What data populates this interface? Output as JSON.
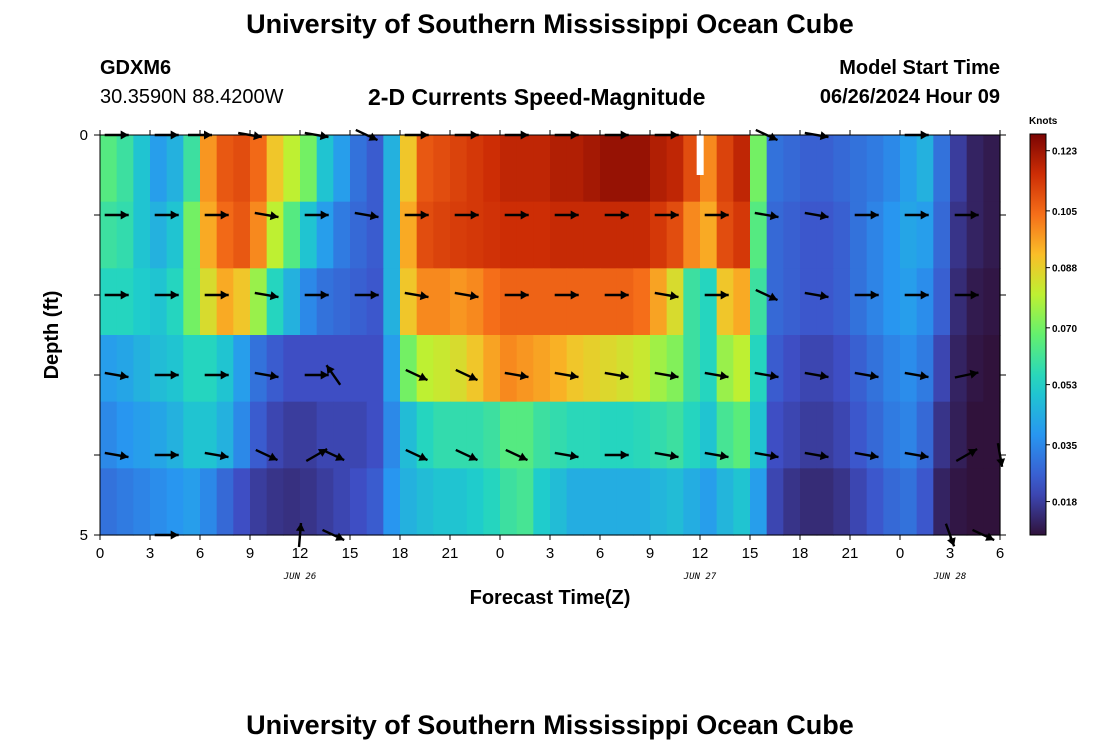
{
  "header": {
    "title": "University of Southern Mississippi Ocean Cube",
    "station_id": "GDXM6",
    "coords": "30.3590N  88.4200W",
    "plot_title": "2-D Currents Speed-Magnitude",
    "model_start_label": "Model Start Time",
    "model_start_value": "06/26/2024 Hour 09"
  },
  "footer": {
    "title": "University of Southern Mississippi Ocean Cube"
  },
  "chart_data": {
    "type": "heatmap",
    "title": "2-D Currents Speed-Magnitude",
    "xlabel": "Forecast Time(Z)",
    "ylabel": "Depth (ft)",
    "x_ticks": [
      "0",
      "3",
      "6",
      "9",
      "12",
      "15",
      "18",
      "21",
      "0",
      "3",
      "6",
      "9",
      "12",
      "15",
      "18",
      "21",
      "0",
      "3",
      "6"
    ],
    "x_range_hours": [
      0,
      54
    ],
    "y_ticks": [
      "0",
      "5"
    ],
    "y_range_ft": [
      0,
      5
    ],
    "date_labels": [
      {
        "text": "JUN 26",
        "hour": 12
      },
      {
        "text": "JUN 27",
        "hour": 36
      },
      {
        "text": "JUN 28",
        "hour": 51
      }
    ],
    "colorbar": {
      "unit": "Knots",
      "ticks": [
        "0.123",
        "0.105",
        "0.088",
        "0.070",
        "0.053",
        "0.035",
        "0.018"
      ],
      "range": [
        0.008,
        0.128
      ]
    },
    "columns_hours": [
      0,
      1,
      2,
      3,
      4,
      5,
      6,
      7,
      8,
      9,
      10,
      11,
      12,
      13,
      14,
      15,
      16,
      17,
      18,
      19,
      20,
      21,
      22,
      23,
      24,
      25,
      26,
      27,
      28,
      29,
      30,
      31,
      32,
      33,
      34,
      35,
      36,
      37,
      38,
      39,
      40,
      41,
      42,
      43,
      44,
      45,
      46,
      47,
      48,
      49,
      50,
      51,
      52,
      53
    ],
    "depth_rows_ft": [
      0,
      1,
      2,
      3,
      4,
      5
    ],
    "speed_knots": [
      [
        0.065,
        0.06,
        0.05,
        0.04,
        0.045,
        0.06,
        0.098,
        0.108,
        0.11,
        0.105,
        0.09,
        0.08,
        0.07,
        0.05,
        0.04,
        0.03,
        0.025,
        0.045,
        0.09,
        0.108,
        0.11,
        0.112,
        0.114,
        0.116,
        0.118,
        0.118,
        0.118,
        0.12,
        0.12,
        0.122,
        0.124,
        0.124,
        0.124,
        0.12,
        0.118,
        0.11,
        0.1,
        0.112,
        0.118,
        0.07,
        0.03,
        0.028,
        0.026,
        0.026,
        0.028,
        0.03,
        0.032,
        0.035,
        0.04,
        0.045,
        0.03,
        0.018,
        0.012,
        0.01
      ],
      [
        0.06,
        0.058,
        0.05,
        0.045,
        0.05,
        0.07,
        0.095,
        0.105,
        0.108,
        0.1,
        0.08,
        0.065,
        0.05,
        0.04,
        0.032,
        0.028,
        0.025,
        0.045,
        0.095,
        0.11,
        0.112,
        0.113,
        0.114,
        0.115,
        0.116,
        0.116,
        0.116,
        0.117,
        0.117,
        0.117,
        0.117,
        0.117,
        0.117,
        0.114,
        0.11,
        0.1,
        0.095,
        0.11,
        0.114,
        0.065,
        0.028,
        0.026,
        0.024,
        0.024,
        0.026,
        0.03,
        0.034,
        0.038,
        0.042,
        0.04,
        0.028,
        0.016,
        0.012,
        0.01
      ],
      [
        0.055,
        0.055,
        0.052,
        0.05,
        0.055,
        0.07,
        0.085,
        0.095,
        0.09,
        0.075,
        0.055,
        0.045,
        0.035,
        0.03,
        0.028,
        0.026,
        0.024,
        0.045,
        0.09,
        0.1,
        0.1,
        0.098,
        0.1,
        0.104,
        0.106,
        0.106,
        0.106,
        0.106,
        0.106,
        0.106,
        0.106,
        0.106,
        0.104,
        0.096,
        0.085,
        0.06,
        0.055,
        0.09,
        0.095,
        0.06,
        0.028,
        0.026,
        0.024,
        0.024,
        0.026,
        0.03,
        0.034,
        0.038,
        0.04,
        0.036,
        0.026,
        0.014,
        0.01,
        0.009
      ],
      [
        0.04,
        0.042,
        0.045,
        0.048,
        0.05,
        0.055,
        0.055,
        0.05,
        0.04,
        0.03,
        0.025,
        0.022,
        0.022,
        0.022,
        0.022,
        0.022,
        0.022,
        0.04,
        0.07,
        0.08,
        0.082,
        0.085,
        0.09,
        0.096,
        0.1,
        0.098,
        0.096,
        0.094,
        0.09,
        0.088,
        0.086,
        0.084,
        0.082,
        0.076,
        0.072,
        0.06,
        0.055,
        0.075,
        0.08,
        0.055,
        0.025,
        0.022,
        0.02,
        0.02,
        0.022,
        0.026,
        0.03,
        0.034,
        0.036,
        0.032,
        0.02,
        0.012,
        0.009,
        0.008
      ],
      [
        0.035,
        0.038,
        0.04,
        0.042,
        0.045,
        0.05,
        0.05,
        0.045,
        0.035,
        0.025,
        0.02,
        0.018,
        0.018,
        0.02,
        0.02,
        0.02,
        0.022,
        0.035,
        0.048,
        0.055,
        0.058,
        0.058,
        0.058,
        0.06,
        0.065,
        0.065,
        0.06,
        0.058,
        0.056,
        0.056,
        0.055,
        0.055,
        0.056,
        0.058,
        0.06,
        0.055,
        0.05,
        0.062,
        0.066,
        0.05,
        0.022,
        0.02,
        0.018,
        0.018,
        0.02,
        0.024,
        0.028,
        0.032,
        0.034,
        0.028,
        0.016,
        0.011,
        0.008,
        0.008
      ],
      [
        0.03,
        0.032,
        0.034,
        0.036,
        0.038,
        0.04,
        0.035,
        0.028,
        0.022,
        0.018,
        0.016,
        0.015,
        0.016,
        0.018,
        0.02,
        0.022,
        0.025,
        0.038,
        0.045,
        0.048,
        0.05,
        0.05,
        0.052,
        0.055,
        0.06,
        0.062,
        0.052,
        0.048,
        0.044,
        0.044,
        0.044,
        0.044,
        0.044,
        0.046,
        0.048,
        0.044,
        0.04,
        0.046,
        0.05,
        0.04,
        0.02,
        0.016,
        0.014,
        0.014,
        0.016,
        0.02,
        0.024,
        0.028,
        0.03,
        0.024,
        0.012,
        0.009,
        0.008,
        0.008
      ]
    ],
    "vectors": [
      {
        "row": 0,
        "h": 1,
        "dir": "E"
      },
      {
        "row": 0,
        "h": 4,
        "dir": "E"
      },
      {
        "row": 0,
        "h": 6,
        "dir": "E"
      },
      {
        "row": 0,
        "h": 9,
        "dir": "ESE"
      },
      {
        "row": 0,
        "h": 13,
        "dir": "ESE"
      },
      {
        "row": 0,
        "h": 16,
        "dir": "SE"
      },
      {
        "row": 0,
        "h": 19,
        "dir": "E"
      },
      {
        "row": 0,
        "h": 22,
        "dir": "E"
      },
      {
        "row": 0,
        "h": 25,
        "dir": "E"
      },
      {
        "row": 0,
        "h": 28,
        "dir": "E"
      },
      {
        "row": 0,
        "h": 31,
        "dir": "E"
      },
      {
        "row": 0,
        "h": 34,
        "dir": "E"
      },
      {
        "row": 0,
        "h": 40,
        "dir": "SE"
      },
      {
        "row": 0,
        "h": 43,
        "dir": "ESE"
      },
      {
        "row": 0,
        "h": 49,
        "dir": "E"
      },
      {
        "row": 1,
        "h": 1,
        "dir": "E"
      },
      {
        "row": 1,
        "h": 4,
        "dir": "E"
      },
      {
        "row": 1,
        "h": 7,
        "dir": "E"
      },
      {
        "row": 1,
        "h": 10,
        "dir": "ESE"
      },
      {
        "row": 1,
        "h": 13,
        "dir": "E"
      },
      {
        "row": 1,
        "h": 16,
        "dir": "ESE"
      },
      {
        "row": 1,
        "h": 19,
        "dir": "E"
      },
      {
        "row": 1,
        "h": 22,
        "dir": "E"
      },
      {
        "row": 1,
        "h": 25,
        "dir": "E"
      },
      {
        "row": 1,
        "h": 28,
        "dir": "E"
      },
      {
        "row": 1,
        "h": 31,
        "dir": "E"
      },
      {
        "row": 1,
        "h": 34,
        "dir": "E"
      },
      {
        "row": 1,
        "h": 37,
        "dir": "E"
      },
      {
        "row": 1,
        "h": 40,
        "dir": "ESE"
      },
      {
        "row": 1,
        "h": 43,
        "dir": "ESE"
      },
      {
        "row": 1,
        "h": 46,
        "dir": "E"
      },
      {
        "row": 1,
        "h": 49,
        "dir": "E"
      },
      {
        "row": 1,
        "h": 52,
        "dir": "E"
      },
      {
        "row": 2,
        "h": 1,
        "dir": "E"
      },
      {
        "row": 2,
        "h": 4,
        "dir": "E"
      },
      {
        "row": 2,
        "h": 7,
        "dir": "E"
      },
      {
        "row": 2,
        "h": 10,
        "dir": "ESE"
      },
      {
        "row": 2,
        "h": 13,
        "dir": "E"
      },
      {
        "row": 2,
        "h": 16,
        "dir": "E"
      },
      {
        "row": 2,
        "h": 19,
        "dir": "ESE"
      },
      {
        "row": 2,
        "h": 22,
        "dir": "ESE"
      },
      {
        "row": 2,
        "h": 25,
        "dir": "E"
      },
      {
        "row": 2,
        "h": 28,
        "dir": "E"
      },
      {
        "row": 2,
        "h": 31,
        "dir": "E"
      },
      {
        "row": 2,
        "h": 34,
        "dir": "ESE"
      },
      {
        "row": 2,
        "h": 37,
        "dir": "E"
      },
      {
        "row": 2,
        "h": 40,
        "dir": "SE"
      },
      {
        "row": 2,
        "h": 43,
        "dir": "ESE"
      },
      {
        "row": 2,
        "h": 46,
        "dir": "E"
      },
      {
        "row": 2,
        "h": 49,
        "dir": "E"
      },
      {
        "row": 2,
        "h": 52,
        "dir": "E"
      },
      {
        "row": 3,
        "h": 1,
        "dir": "ESE"
      },
      {
        "row": 3,
        "h": 4,
        "dir": "E"
      },
      {
        "row": 3,
        "h": 7,
        "dir": "E"
      },
      {
        "row": 3,
        "h": 10,
        "dir": "ESE"
      },
      {
        "row": 3,
        "h": 13,
        "dir": "E"
      },
      {
        "row": 3,
        "h": 14,
        "dir": "NW"
      },
      {
        "row": 3,
        "h": 19,
        "dir": "SE"
      },
      {
        "row": 3,
        "h": 22,
        "dir": "SE"
      },
      {
        "row": 3,
        "h": 25,
        "dir": "ESE"
      },
      {
        "row": 3,
        "h": 28,
        "dir": "ESE"
      },
      {
        "row": 3,
        "h": 31,
        "dir": "ESE"
      },
      {
        "row": 3,
        "h": 34,
        "dir": "ESE"
      },
      {
        "row": 3,
        "h": 37,
        "dir": "ESE"
      },
      {
        "row": 3,
        "h": 40,
        "dir": "ESE"
      },
      {
        "row": 3,
        "h": 43,
        "dir": "ESE"
      },
      {
        "row": 3,
        "h": 46,
        "dir": "ESE"
      },
      {
        "row": 3,
        "h": 49,
        "dir": "ESE"
      },
      {
        "row": 3,
        "h": 52,
        "dir": "ENE"
      },
      {
        "row": 4,
        "h": 1,
        "dir": "ESE"
      },
      {
        "row": 4,
        "h": 4,
        "dir": "E"
      },
      {
        "row": 4,
        "h": 7,
        "dir": "ESE"
      },
      {
        "row": 4,
        "h": 10,
        "dir": "SE"
      },
      {
        "row": 4,
        "h": 13,
        "dir": "NE"
      },
      {
        "row": 4,
        "h": 14,
        "dir": "SE"
      },
      {
        "row": 4,
        "h": 19,
        "dir": "SE"
      },
      {
        "row": 4,
        "h": 22,
        "dir": "SE"
      },
      {
        "row": 4,
        "h": 25,
        "dir": "SE"
      },
      {
        "row": 4,
        "h": 28,
        "dir": "ESE"
      },
      {
        "row": 4,
        "h": 31,
        "dir": "E"
      },
      {
        "row": 4,
        "h": 34,
        "dir": "ESE"
      },
      {
        "row": 4,
        "h": 37,
        "dir": "ESE"
      },
      {
        "row": 4,
        "h": 40,
        "dir": "ESE"
      },
      {
        "row": 4,
        "h": 43,
        "dir": "ESE"
      },
      {
        "row": 4,
        "h": 46,
        "dir": "ESE"
      },
      {
        "row": 4,
        "h": 49,
        "dir": "ESE"
      },
      {
        "row": 4,
        "h": 52,
        "dir": "NE"
      },
      {
        "row": 4,
        "h": 54,
        "dir": "S"
      },
      {
        "row": 5,
        "h": 4,
        "dir": "E"
      },
      {
        "row": 5,
        "h": 12,
        "dir": "N"
      },
      {
        "row": 5,
        "h": 14,
        "dir": "SE"
      },
      {
        "row": 5,
        "h": 51,
        "dir": "SSE"
      },
      {
        "row": 5,
        "h": 53,
        "dir": "SE"
      }
    ]
  }
}
